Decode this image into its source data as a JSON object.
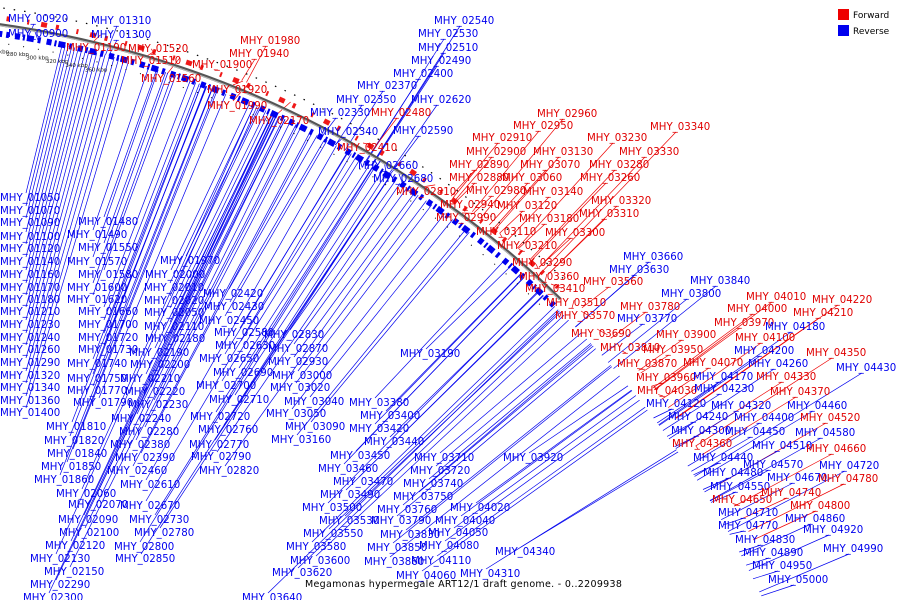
{
  "caption": "Megamonas hypermegale ART12/1 draft genome. - 0..2209938",
  "legend": [
    {
      "label": "Forward",
      "color": "#ee0000"
    },
    {
      "label": "Reverse",
      "color": "#0000ee"
    }
  ],
  "scale_labels": [
    "80 kbp",
    "100 kbp",
    "120 kbp",
    "140 kbp",
    "160 kbp",
    "180 kbp",
    "200 kbp",
    "220 kbp",
    "240 kbp",
    "260 kbp",
    "280 kbp",
    "300 kbp",
    "320 kbp",
    "340 kbp",
    "360 kbp"
  ],
  "labels": [
    [
      "MHY_00920",
      8,
      14,
      "r"
    ],
    [
      "MHY_00900",
      8,
      29,
      "r"
    ],
    [
      "MHY_01310",
      91,
      16,
      "r"
    ],
    [
      "MHY_01300",
      91,
      30,
      "r"
    ],
    [
      "MHY_01190",
      66,
      43,
      "f"
    ],
    [
      "MHY_01520",
      128,
      44,
      "f"
    ],
    [
      "MHY_01510",
      121,
      56,
      "f"
    ],
    [
      "MHY_01560",
      141,
      74,
      "f"
    ],
    [
      "MHY_01980",
      240,
      36,
      "f"
    ],
    [
      "MHY_01940",
      229,
      49,
      "f"
    ],
    [
      "MHY_01900",
      192,
      60,
      "f"
    ],
    [
      "MHY_01920",
      207,
      85,
      "f"
    ],
    [
      "MHY_01990",
      207,
      101,
      "f"
    ],
    [
      "MHY_02170",
      249,
      116,
      "f"
    ],
    [
      "MHY_02540",
      434,
      16,
      "r"
    ],
    [
      "MHY_02530",
      418,
      29,
      "r"
    ],
    [
      "MHY_02510",
      418,
      43,
      "r"
    ],
    [
      "MHY_02490",
      411,
      56,
      "r"
    ],
    [
      "MHY_02400",
      393,
      69,
      "r"
    ],
    [
      "MHY_02370",
      357,
      81,
      "r"
    ],
    [
      "MHY_02350",
      336,
      95,
      "r"
    ],
    [
      "MHY_02620",
      411,
      95,
      "r"
    ],
    [
      "MHY_02330",
      310,
      108,
      "r"
    ],
    [
      "MHY_02480",
      371,
      108,
      "f"
    ],
    [
      "MHY_02340",
      318,
      127,
      "r"
    ],
    [
      "MHY_02590",
      393,
      126,
      "r"
    ],
    [
      "MHY_02410",
      337,
      143,
      "f"
    ],
    [
      "MHY_02660",
      358,
      161,
      "r"
    ],
    [
      "MHY_02680",
      373,
      174,
      "r"
    ],
    [
      "MHY_02960",
      537,
      109,
      "f"
    ],
    [
      "MHY_02950",
      513,
      121,
      "f"
    ],
    [
      "MHY_02910",
      472,
      133,
      "f"
    ],
    [
      "MHY_02900",
      466,
      147,
      "f"
    ],
    [
      "MHY_03130",
      533,
      147,
      "f"
    ],
    [
      "MHY_03230",
      587,
      133,
      "f"
    ],
    [
      "MHY_03340",
      650,
      122,
      "f"
    ],
    [
      "MHY_03330",
      619,
      147,
      "f"
    ],
    [
      "MHY_02890",
      449,
      160,
      "f"
    ],
    [
      "MHY_03070",
      520,
      160,
      "f"
    ],
    [
      "MHY_03280",
      589,
      160,
      "f"
    ],
    [
      "MHY_02880",
      449,
      173,
      "f"
    ],
    [
      "MHY_03060",
      502,
      173,
      "f"
    ],
    [
      "MHY_03260",
      580,
      173,
      "f"
    ],
    [
      "MHY_02810",
      396,
      187,
      "f"
    ],
    [
      "MHY_02980",
      466,
      186,
      "f"
    ],
    [
      "MHY_03140",
      523,
      187,
      "f"
    ],
    [
      "MHY_03320",
      591,
      196,
      "f"
    ],
    [
      "MHY_02940",
      440,
      200,
      "f"
    ],
    [
      "MHY_03120",
      497,
      201,
      "f"
    ],
    [
      "MHY_03310",
      579,
      209,
      "f"
    ],
    [
      "MHY_02990",
      436,
      213,
      "f"
    ],
    [
      "MHY_03180",
      519,
      214,
      "f"
    ],
    [
      "MHY_03110",
      476,
      227,
      "f"
    ],
    [
      "MHY_03300",
      545,
      228,
      "f"
    ],
    [
      "MHY_03210",
      497,
      241,
      "f"
    ],
    [
      "MHY_03290",
      512,
      258,
      "f"
    ],
    [
      "MHY_03660",
      623,
      252,
      "r"
    ],
    [
      "MHY_03630",
      609,
      265,
      "r"
    ],
    [
      "MHY_03360",
      519,
      272,
      "f"
    ],
    [
      "MHY_03560",
      583,
      277,
      "f"
    ],
    [
      "MHY_03840",
      690,
      276,
      "r"
    ],
    [
      "MHY_03410",
      525,
      284,
      "f"
    ],
    [
      "MHY_03800",
      661,
      289,
      "r"
    ],
    [
      "MHY_04010",
      746,
      292,
      "f"
    ],
    [
      "MHY_04220",
      812,
      295,
      "f"
    ],
    [
      "MHY_03510",
      546,
      298,
      "f"
    ],
    [
      "MHY_03780",
      620,
      302,
      "f"
    ],
    [
      "MHY_04000",
      727,
      304,
      "f"
    ],
    [
      "MHY_04210",
      793,
      308,
      "f"
    ],
    [
      "MHY_03570",
      555,
      311,
      "f"
    ],
    [
      "MHY_03770",
      617,
      314,
      "r"
    ],
    [
      "MHY_03970",
      714,
      318,
      "f"
    ],
    [
      "MHY_04180",
      765,
      322,
      "r"
    ],
    [
      "MHY_03690",
      571,
      329,
      "f"
    ],
    [
      "MHY_03900",
      656,
      330,
      "f"
    ],
    [
      "MHY_04100",
      735,
      333,
      "f"
    ],
    [
      "MHY_03810",
      600,
      343,
      "f"
    ],
    [
      "MHY_03950",
      643,
      345,
      "f"
    ],
    [
      "MHY_04200",
      734,
      346,
      "r"
    ],
    [
      "MHY_04350",
      806,
      348,
      "f"
    ],
    [
      "MHY_03870",
      617,
      359,
      "f"
    ],
    [
      "MHY_04070",
      683,
      358,
      "f"
    ],
    [
      "MHY_04260",
      748,
      359,
      "r"
    ],
    [
      "MHY_04430",
      836,
      363,
      "r"
    ],
    [
      "MHY_03960",
      636,
      373,
      "f"
    ],
    [
      "MHY_04170",
      693,
      372,
      "r"
    ],
    [
      "MHY_04330",
      756,
      372,
      "f"
    ],
    [
      "MHY_04030",
      637,
      386,
      "f"
    ],
    [
      "MHY_04230",
      694,
      384,
      "r"
    ],
    [
      "MHY_04370",
      770,
      387,
      "f"
    ],
    [
      "MHY_04120",
      646,
      399,
      "r"
    ],
    [
      "MHY_04320",
      711,
      401,
      "r"
    ],
    [
      "MHY_04460",
      787,
      401,
      "r"
    ],
    [
      "MHY_04240",
      668,
      412,
      "r"
    ],
    [
      "MHY_04400",
      734,
      413,
      "r"
    ],
    [
      "MHY_04520",
      800,
      413,
      "f"
    ],
    [
      "MHY_04300",
      671,
      426,
      "r"
    ],
    [
      "MHY_04450",
      725,
      427,
      "r"
    ],
    [
      "MHY_04580",
      795,
      428,
      "r"
    ],
    [
      "MHY_04360",
      672,
      439,
      "f"
    ],
    [
      "MHY_04510",
      752,
      441,
      "r"
    ],
    [
      "MHY_04660",
      806,
      444,
      "f"
    ],
    [
      "MHY_04440",
      693,
      453,
      "r"
    ],
    [
      "MHY_04570",
      743,
      460,
      "r"
    ],
    [
      "MHY_04720",
      819,
      461,
      "r"
    ],
    [
      "MHY_04480",
      703,
      468,
      "r"
    ],
    [
      "MHY_04670",
      767,
      473,
      "r"
    ],
    [
      "MHY_04780",
      818,
      474,
      "f"
    ],
    [
      "MHY_04550",
      710,
      482,
      "r"
    ],
    [
      "MHY_04740",
      761,
      488,
      "f"
    ],
    [
      "MHY_04650",
      712,
      495,
      "f"
    ],
    [
      "MHY_04800",
      790,
      501,
      "f"
    ],
    [
      "MHY_04710",
      718,
      508,
      "r"
    ],
    [
      "MHY_04860",
      785,
      514,
      "r"
    ],
    [
      "MHY_04770",
      718,
      521,
      "r"
    ],
    [
      "MHY_04920",
      803,
      525,
      "r"
    ],
    [
      "MHY_04830",
      735,
      535,
      "r"
    ],
    [
      "MHY_04990",
      823,
      544,
      "r"
    ],
    [
      "MHY_04890",
      743,
      548,
      "r"
    ],
    [
      "MHY_04950",
      752,
      561,
      "r"
    ],
    [
      "MHY_05000",
      768,
      575,
      "r"
    ],
    [
      "MHY_01050",
      0,
      193,
      "r"
    ],
    [
      "MHY_01070",
      0,
      206,
      "r"
    ],
    [
      "MHY_01090",
      0,
      218,
      "r"
    ],
    [
      "MHY_01480",
      78,
      217,
      "r"
    ],
    [
      "MHY_01100",
      0,
      232,
      "r"
    ],
    [
      "MHY_01490",
      67,
      230,
      "r"
    ],
    [
      "MHY_01120",
      0,
      244,
      "r"
    ],
    [
      "MHY_01550",
      78,
      243,
      "r"
    ],
    [
      "MHY_01140",
      0,
      257,
      "r"
    ],
    [
      "MHY_01570",
      67,
      257,
      "r"
    ],
    [
      "MHY_01970",
      160,
      256,
      "r"
    ],
    [
      "MHY_01160",
      0,
      270,
      "r"
    ],
    [
      "MHY_01580",
      78,
      270,
      "r"
    ],
    [
      "MHY_02000",
      145,
      270,
      "r"
    ],
    [
      "MHY_01170",
      0,
      283,
      "r"
    ],
    [
      "MHY_01600",
      67,
      283,
      "r"
    ],
    [
      "MHY_02010",
      144,
      283,
      "r"
    ],
    [
      "MHY_02420",
      203,
      289,
      "r"
    ],
    [
      "MHY_01180",
      0,
      295,
      "r"
    ],
    [
      "MHY_01620",
      67,
      295,
      "r"
    ],
    [
      "MHY_02020",
      144,
      296,
      "r"
    ],
    [
      "MHY_02430",
      204,
      302,
      "r"
    ],
    [
      "MHY_01210",
      0,
      307,
      "r"
    ],
    [
      "MHY_01660",
      78,
      307,
      "r"
    ],
    [
      "MHY_02050",
      144,
      308,
      "r"
    ],
    [
      "MHY_02450",
      199,
      316,
      "r"
    ],
    [
      "MHY_01230",
      0,
      320,
      "r"
    ],
    [
      "MHY_01700",
      78,
      320,
      "r"
    ],
    [
      "MHY_02110",
      144,
      322,
      "r"
    ],
    [
      "MHY_02580",
      214,
      328,
      "r"
    ],
    [
      "MHY_02830",
      264,
      330,
      "r"
    ],
    [
      "MHY_01240",
      0,
      333,
      "r"
    ],
    [
      "MHY_01720",
      78,
      333,
      "r"
    ],
    [
      "MHY_02180",
      145,
      334,
      "r"
    ],
    [
      "MHY_02630",
      215,
      341,
      "r"
    ],
    [
      "MHY_02870",
      268,
      344,
      "r"
    ],
    [
      "MHY_01260",
      0,
      345,
      "r"
    ],
    [
      "MHY_01730",
      78,
      345,
      "r"
    ],
    [
      "MHY_02190",
      129,
      348,
      "r"
    ],
    [
      "MHY_02650",
      199,
      354,
      "r"
    ],
    [
      "MHY_02930",
      268,
      357,
      "r"
    ],
    [
      "MHY_01290",
      0,
      358,
      "r"
    ],
    [
      "MHY_01740",
      67,
      359,
      "r"
    ],
    [
      "MHY_02200",
      130,
      360,
      "r"
    ],
    [
      "MHY_02690",
      213,
      368,
      "r"
    ],
    [
      "MHY_03000",
      272,
      371,
      "r"
    ],
    [
      "MHY_01320",
      0,
      371,
      "r"
    ],
    [
      "MHY_01750",
      67,
      374,
      "r"
    ],
    [
      "MHY_02210",
      120,
      374,
      "r"
    ],
    [
      "MHY_02700",
      196,
      381,
      "r"
    ],
    [
      "MHY_03020",
      270,
      383,
      "r"
    ],
    [
      "MHY_01340",
      0,
      383,
      "r"
    ],
    [
      "MHY_01770",
      67,
      386,
      "r"
    ],
    [
      "MHY_02220",
      125,
      387,
      "r"
    ],
    [
      "MHY_02710",
      209,
      395,
      "r"
    ],
    [
      "MHY_03040",
      284,
      397,
      "r"
    ],
    [
      "MHY_01360",
      0,
      396,
      "r"
    ],
    [
      "MHY_01790",
      73,
      398,
      "r"
    ],
    [
      "MHY_02230",
      128,
      400,
      "r"
    ],
    [
      "MHY_03050",
      266,
      409,
      "r"
    ],
    [
      "MHY_01400",
      0,
      408,
      "r"
    ],
    [
      "MHY_02240",
      111,
      414,
      "r"
    ],
    [
      "MHY_02720",
      190,
      412,
      "r"
    ],
    [
      "MHY_03090",
      285,
      422,
      "r"
    ],
    [
      "MHY_01810",
      46,
      422,
      "r"
    ],
    [
      "MHY_02280",
      119,
      427,
      "r"
    ],
    [
      "MHY_02760",
      198,
      425,
      "r"
    ],
    [
      "MHY_03160",
      271,
      435,
      "r"
    ],
    [
      "MHY_01820",
      44,
      436,
      "r"
    ],
    [
      "MHY_02380",
      110,
      440,
      "r"
    ],
    [
      "MHY_02770",
      189,
      440,
      "r"
    ],
    [
      "MHY_01840",
      47,
      449,
      "r"
    ],
    [
      "MHY_02390",
      115,
      453,
      "r"
    ],
    [
      "MHY_02790",
      191,
      452,
      "r"
    ],
    [
      "MHY_01850",
      41,
      462,
      "r"
    ],
    [
      "MHY_02460",
      107,
      466,
      "r"
    ],
    [
      "MHY_02820",
      199,
      466,
      "r"
    ],
    [
      "MHY_01860",
      34,
      475,
      "r"
    ],
    [
      "MHY_02610",
      120,
      480,
      "r"
    ],
    [
      "MHY_02060",
      56,
      489,
      "r"
    ],
    [
      "MHY_02070",
      68,
      500,
      "r"
    ],
    [
      "MHY_02670",
      120,
      501,
      "r"
    ],
    [
      "MHY_02090",
      58,
      515,
      "r"
    ],
    [
      "MHY_02730",
      129,
      515,
      "r"
    ],
    [
      "MHY_02100",
      59,
      528,
      "r"
    ],
    [
      "MHY_02780",
      134,
      528,
      "r"
    ],
    [
      "MHY_02120",
      45,
      541,
      "r"
    ],
    [
      "MHY_02800",
      114,
      542,
      "r"
    ],
    [
      "MHY_02130",
      30,
      554,
      "r"
    ],
    [
      "MHY_02850",
      115,
      554,
      "r"
    ],
    [
      "MHY_02150",
      44,
      567,
      "r"
    ],
    [
      "MHY_02290",
      30,
      580,
      "r"
    ],
    [
      "MHY_02300",
      23,
      593,
      "r"
    ],
    [
      "MHY_03190",
      400,
      349,
      "r"
    ],
    [
      "MHY_03380",
      349,
      398,
      "r"
    ],
    [
      "MHY_03400",
      360,
      411,
      "r"
    ],
    [
      "MHY_03420",
      349,
      424,
      "r"
    ],
    [
      "MHY_03440",
      364,
      437,
      "r"
    ],
    [
      "MHY_03450",
      330,
      451,
      "r"
    ],
    [
      "MHY_03710",
      414,
      453,
      "r"
    ],
    [
      "MHY_03920",
      503,
      453,
      "r"
    ],
    [
      "MHY_03460",
      318,
      464,
      "r"
    ],
    [
      "MHY_03720",
      410,
      466,
      "r"
    ],
    [
      "MHY_03470",
      333,
      477,
      "r"
    ],
    [
      "MHY_03740",
      403,
      479,
      "r"
    ],
    [
      "MHY_03490",
      320,
      490,
      "r"
    ],
    [
      "MHY_03750",
      393,
      492,
      "r"
    ],
    [
      "MHY_04020",
      450,
      503,
      "r"
    ],
    [
      "MHY_03500",
      302,
      503,
      "r"
    ],
    [
      "MHY_03760",
      377,
      505,
      "r"
    ],
    [
      "MHY_03530",
      319,
      516,
      "r"
    ],
    [
      "MHY_03790",
      371,
      516,
      "r"
    ],
    [
      "MHY_04040",
      435,
      516,
      "r"
    ],
    [
      "MHY_03550",
      303,
      529,
      "r"
    ],
    [
      "MHY_03830",
      380,
      530,
      "r"
    ],
    [
      "MHY_04050",
      428,
      528,
      "r"
    ],
    [
      "MHY_03580",
      286,
      542,
      "r"
    ],
    [
      "MHY_03850",
      367,
      543,
      "r"
    ],
    [
      "MHY_04080",
      419,
      541,
      "r"
    ],
    [
      "MHY_04340",
      495,
      547,
      "r"
    ],
    [
      "MHY_03600",
      290,
      556,
      "r"
    ],
    [
      "MHY_03860",
      364,
      557,
      "r"
    ],
    [
      "MHY_04110",
      411,
      556,
      "r"
    ],
    [
      "MHY_03620",
      272,
      568,
      "r"
    ],
    [
      "MHY_04060",
      396,
      571,
      "r"
    ],
    [
      "MHY_04310",
      460,
      569,
      "r"
    ],
    [
      "MHY_03640",
      242,
      593,
      "r"
    ]
  ]
}
